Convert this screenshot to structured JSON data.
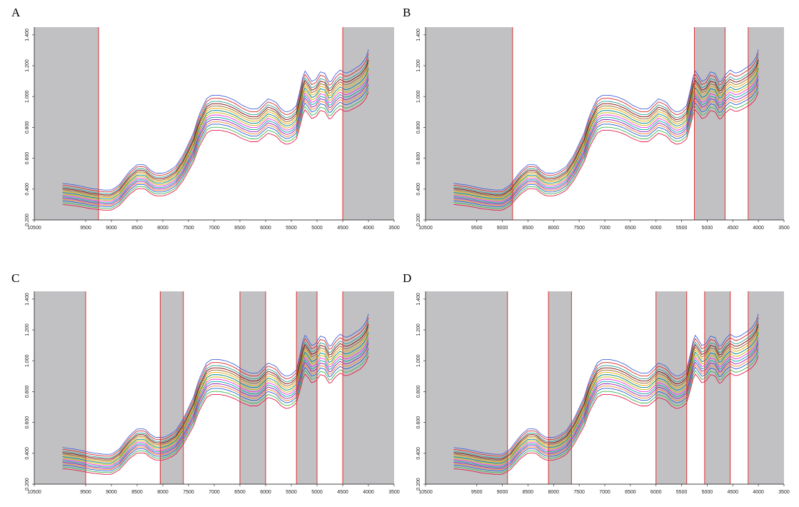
{
  "chart_data": [
    {
      "type": "line",
      "panel": "A",
      "title": "",
      "xlabel": "",
      "ylabel": "",
      "xlim": [
        10500,
        3500
      ],
      "ylim": [
        0.2,
        1.45
      ],
      "x_ticks": [
        10500,
        9500,
        9000,
        8500,
        8000,
        7500,
        7000,
        6500,
        6000,
        5500,
        5000,
        4500,
        4000,
        3500
      ],
      "x_tick_labels": [
        "10500",
        "9500",
        "9000",
        "8500",
        "8000",
        "7500",
        "7000",
        "6500",
        "6000",
        "5500",
        "5000",
        "4500",
        "4000",
        "3500"
      ],
      "y_ticks": [
        0.2,
        0.4,
        0.6,
        0.8,
        1.0,
        1.2,
        1.4
      ],
      "y_tick_labels": [
        "0.200",
        "0.400",
        "0.600",
        "0.800",
        "1.000",
        "1.200",
        "1.400"
      ],
      "excluded_regions": [
        [
          10500,
          9250
        ],
        [
          4500,
          3500
        ]
      ],
      "spectrum_profile": {
        "x": [
          9950,
          9700,
          9400,
          9150,
          9000,
          8850,
          8650,
          8500,
          8350,
          8250,
          8150,
          8000,
          7900,
          7750,
          7600,
          7400,
          7300,
          7150,
          7050,
          6900,
          6750,
          6600,
          6450,
          6300,
          6150,
          6050,
          5950,
          5800,
          5700,
          5600,
          5500,
          5400,
          5300,
          5250,
          5200,
          5100,
          5000,
          4950,
          4850,
          4750,
          4650,
          4550,
          4450,
          4350,
          4250,
          4150,
          4050,
          4000
        ],
        "y": [
          0.36,
          0.35,
          0.33,
          0.32,
          0.32,
          0.35,
          0.43,
          0.47,
          0.47,
          0.44,
          0.42,
          0.42,
          0.43,
          0.46,
          0.53,
          0.66,
          0.76,
          0.86,
          0.88,
          0.88,
          0.87,
          0.85,
          0.82,
          0.8,
          0.8,
          0.83,
          0.86,
          0.84,
          0.8,
          0.78,
          0.79,
          0.82,
          0.95,
          1.03,
          1.01,
          0.96,
          0.98,
          1.02,
          1.01,
          0.95,
          1.0,
          1.03,
          1.01,
          1.02,
          1.04,
          1.06,
          1.1,
          1.15
        ]
      },
      "curve_offsets": [
        -0.1,
        -0.08,
        -0.06,
        -0.045,
        -0.03,
        -0.015,
        0,
        0.015,
        0.03,
        0.045,
        0.06,
        0.075,
        0.09,
        0.11,
        0.13
      ],
      "series_colors": [
        "#e6194b",
        "#3cb44b",
        "#1f5fd1",
        "#f58231",
        "#911eb4",
        "#00a0a0",
        "#f032e6",
        "#c8b400",
        "#008080",
        "#e6a800",
        "#9a6324",
        "#800000",
        "#2a9d8f",
        "#d62728",
        "#4363d8"
      ]
    },
    {
      "type": "line",
      "panel": "B",
      "title": "",
      "xlabel": "",
      "ylabel": "",
      "xlim": [
        10500,
        3500
      ],
      "ylim": [
        0.2,
        1.45
      ],
      "x_ticks": [
        10500,
        9500,
        9000,
        8500,
        8000,
        7500,
        7000,
        6500,
        6000,
        5500,
        5000,
        4500,
        4000,
        3500
      ],
      "x_tick_labels": [
        "10500",
        "9500",
        "9000",
        "8500",
        "8000",
        "7500",
        "7000",
        "6500",
        "6000",
        "5500",
        "5000",
        "4500",
        "4000",
        "3500"
      ],
      "y_ticks": [
        0.2,
        0.4,
        0.6,
        0.8,
        1.0,
        1.2,
        1.4
      ],
      "y_tick_labels": [
        "0.200",
        "0.400",
        "0.600",
        "0.800",
        "1.000",
        "1.200",
        "1.400"
      ],
      "excluded_regions": [
        [
          10500,
          8800
        ],
        [
          5250,
          4650
        ],
        [
          4200,
          3500
        ]
      ],
      "spectrum_profile": {
        "x": [
          9950,
          9700,
          9400,
          9150,
          9000,
          8850,
          8650,
          8500,
          8350,
          8250,
          8150,
          8000,
          7900,
          7750,
          7600,
          7400,
          7300,
          7150,
          7050,
          6900,
          6750,
          6600,
          6450,
          6300,
          6150,
          6050,
          5950,
          5800,
          5700,
          5600,
          5500,
          5400,
          5300,
          5250,
          5200,
          5100,
          5000,
          4950,
          4850,
          4750,
          4650,
          4550,
          4450,
          4350,
          4250,
          4150,
          4050,
          4000
        ],
        "y": [
          0.36,
          0.35,
          0.33,
          0.32,
          0.32,
          0.35,
          0.43,
          0.47,
          0.47,
          0.44,
          0.42,
          0.42,
          0.43,
          0.46,
          0.53,
          0.66,
          0.76,
          0.86,
          0.88,
          0.88,
          0.87,
          0.85,
          0.82,
          0.8,
          0.8,
          0.83,
          0.86,
          0.84,
          0.8,
          0.78,
          0.79,
          0.82,
          0.95,
          1.03,
          1.01,
          0.96,
          0.98,
          1.02,
          1.01,
          0.95,
          1.0,
          1.03,
          1.01,
          1.02,
          1.04,
          1.06,
          1.1,
          1.15
        ]
      },
      "curve_offsets": [
        -0.1,
        -0.08,
        -0.06,
        -0.045,
        -0.03,
        -0.015,
        0,
        0.015,
        0.03,
        0.045,
        0.06,
        0.075,
        0.09,
        0.11,
        0.13
      ],
      "series_colors": [
        "#e6194b",
        "#3cb44b",
        "#1f5fd1",
        "#f58231",
        "#911eb4",
        "#00a0a0",
        "#f032e6",
        "#c8b400",
        "#008080",
        "#e6a800",
        "#9a6324",
        "#800000",
        "#2a9d8f",
        "#d62728",
        "#4363d8"
      ]
    },
    {
      "type": "line",
      "panel": "C",
      "title": "",
      "xlabel": "",
      "ylabel": "",
      "xlim": [
        10500,
        3500
      ],
      "ylim": [
        0.2,
        1.45
      ],
      "x_ticks": [
        10500,
        9500,
        9000,
        8500,
        8000,
        7500,
        7000,
        6500,
        6000,
        5500,
        5000,
        4500,
        4000,
        3500
      ],
      "x_tick_labels": [
        "10500",
        "9500",
        "9000",
        "8500",
        "8000",
        "7500",
        "7000",
        "6500",
        "6000",
        "5500",
        "5000",
        "4500",
        "4000",
        "3500"
      ],
      "y_ticks": [
        0.2,
        0.4,
        0.6,
        0.8,
        1.0,
        1.2,
        1.4
      ],
      "y_tick_labels": [
        "0.200",
        "0.400",
        "0.600",
        "0.800",
        "1.000",
        "1.200",
        "1.400"
      ],
      "excluded_regions": [
        [
          10500,
          9500
        ],
        [
          8050,
          7600
        ],
        [
          6500,
          6000
        ],
        [
          5400,
          5000
        ],
        [
          4500,
          3500
        ]
      ],
      "spectrum_profile": {
        "x": [
          9950,
          9700,
          9400,
          9150,
          9000,
          8850,
          8650,
          8500,
          8350,
          8250,
          8150,
          8000,
          7900,
          7750,
          7600,
          7400,
          7300,
          7150,
          7050,
          6900,
          6750,
          6600,
          6450,
          6300,
          6150,
          6050,
          5950,
          5800,
          5700,
          5600,
          5500,
          5400,
          5300,
          5250,
          5200,
          5100,
          5000,
          4950,
          4850,
          4750,
          4650,
          4550,
          4450,
          4350,
          4250,
          4150,
          4050,
          4000
        ],
        "y": [
          0.36,
          0.35,
          0.33,
          0.32,
          0.32,
          0.35,
          0.43,
          0.47,
          0.47,
          0.44,
          0.42,
          0.42,
          0.43,
          0.46,
          0.53,
          0.66,
          0.76,
          0.86,
          0.88,
          0.88,
          0.87,
          0.85,
          0.82,
          0.8,
          0.8,
          0.83,
          0.86,
          0.84,
          0.8,
          0.78,
          0.79,
          0.82,
          0.95,
          1.03,
          1.01,
          0.96,
          0.98,
          1.02,
          1.01,
          0.95,
          1.0,
          1.03,
          1.01,
          1.02,
          1.04,
          1.06,
          1.1,
          1.15
        ]
      },
      "curve_offsets": [
        -0.1,
        -0.08,
        -0.06,
        -0.045,
        -0.03,
        -0.015,
        0,
        0.015,
        0.03,
        0.045,
        0.06,
        0.075,
        0.09,
        0.11,
        0.13
      ],
      "series_colors": [
        "#e6194b",
        "#3cb44b",
        "#1f5fd1",
        "#f58231",
        "#911eb4",
        "#00a0a0",
        "#f032e6",
        "#c8b400",
        "#008080",
        "#e6a800",
        "#9a6324",
        "#800000",
        "#2a9d8f",
        "#d62728",
        "#4363d8"
      ]
    },
    {
      "type": "line",
      "panel": "D",
      "title": "",
      "xlabel": "",
      "ylabel": "",
      "xlim": [
        10500,
        3500
      ],
      "ylim": [
        0.2,
        1.45
      ],
      "x_ticks": [
        10500,
        9500,
        9000,
        8500,
        8000,
        7500,
        7000,
        6500,
        6000,
        5500,
        5000,
        4500,
        4000,
        3500
      ],
      "x_tick_labels": [
        "10500",
        "9500",
        "9000",
        "8500",
        "8000",
        "7500",
        "7000",
        "6500",
        "6000",
        "5500",
        "5000",
        "4500",
        "4000",
        "3500"
      ],
      "y_ticks": [
        0.2,
        0.4,
        0.6,
        0.8,
        1.0,
        1.2,
        1.4
      ],
      "y_tick_labels": [
        "0.200",
        "0.400",
        "0.600",
        "0.800",
        "1.000",
        "1.200",
        "1.400"
      ],
      "excluded_regions": [
        [
          10500,
          8900
        ],
        [
          8100,
          7650
        ],
        [
          6000,
          5400
        ],
        [
          5050,
          4550
        ],
        [
          4200,
          3500
        ]
      ],
      "spectrum_profile": {
        "x": [
          9950,
          9700,
          9400,
          9150,
          9000,
          8850,
          8650,
          8500,
          8350,
          8250,
          8150,
          8000,
          7900,
          7750,
          7600,
          7400,
          7300,
          7150,
          7050,
          6900,
          6750,
          6600,
          6450,
          6300,
          6150,
          6050,
          5950,
          5800,
          5700,
          5600,
          5500,
          5400,
          5300,
          5250,
          5200,
          5100,
          5000,
          4950,
          4850,
          4750,
          4650,
          4550,
          4450,
          4350,
          4250,
          4150,
          4050,
          4000
        ],
        "y": [
          0.36,
          0.35,
          0.33,
          0.32,
          0.32,
          0.35,
          0.43,
          0.47,
          0.47,
          0.44,
          0.42,
          0.42,
          0.43,
          0.46,
          0.53,
          0.66,
          0.76,
          0.86,
          0.88,
          0.88,
          0.87,
          0.85,
          0.82,
          0.8,
          0.8,
          0.83,
          0.86,
          0.84,
          0.8,
          0.78,
          0.79,
          0.82,
          0.95,
          1.03,
          1.01,
          0.96,
          0.98,
          1.02,
          1.01,
          0.95,
          1.0,
          1.03,
          1.01,
          1.02,
          1.04,
          1.06,
          1.1,
          1.15
        ]
      },
      "curve_offsets": [
        -0.1,
        -0.08,
        -0.06,
        -0.045,
        -0.03,
        -0.015,
        0,
        0.015,
        0.03,
        0.045,
        0.06,
        0.075,
        0.09,
        0.11,
        0.13
      ],
      "series_colors": [
        "#e6194b",
        "#3cb44b",
        "#1f5fd1",
        "#f58231",
        "#911eb4",
        "#00a0a0",
        "#f032e6",
        "#c8b400",
        "#008080",
        "#e6a800",
        "#9a6324",
        "#800000",
        "#2a9d8f",
        "#d62728",
        "#4363d8"
      ]
    }
  ],
  "style": {
    "excluded_fill": "#c1c1c3",
    "boundary_color": "#e03030",
    "axis_color": "#444444"
  }
}
